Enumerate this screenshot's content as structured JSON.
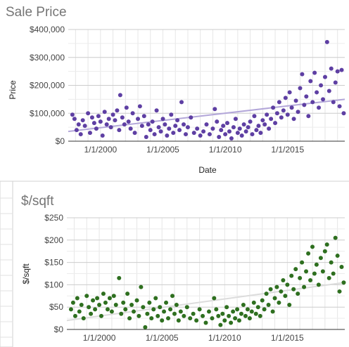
{
  "chart_data": [
    {
      "type": "scatter",
      "title": "Sale Price",
      "xlabel": "Date",
      "ylabel": "Price",
      "x_range": [
        "1997-06-01",
        "2019-08-01"
      ],
      "x_ticks": [
        "1/1/2000",
        "1/1/2005",
        "1/1/2010",
        "1/1/2015"
      ],
      "y_ticks": [
        "$0",
        "$100,000",
        "$200,000",
        "$300,000",
        "$400,000"
      ],
      "ylim": [
        0,
        400000
      ],
      "grid": true,
      "point_color": "#5e3fa3",
      "trend_color": "#b3a7d9",
      "trendline": {
        "x": [
          "1997-06-01",
          "2019-08-01"
        ],
        "y": [
          35000,
          150000
        ]
      },
      "points": [
        {
          "x": "1997-10-01",
          "y": 95000
        },
        {
          "x": "1997-12-01",
          "y": 80000
        },
        {
          "x": "1998-02-01",
          "y": 40000
        },
        {
          "x": "1998-04-01",
          "y": 60000
        },
        {
          "x": "1998-06-01",
          "y": 25000
        },
        {
          "x": "1998-08-01",
          "y": 75000
        },
        {
          "x": "1998-10-01",
          "y": 55000
        },
        {
          "x": "1999-01-01",
          "y": 100000
        },
        {
          "x": "1999-03-01",
          "y": 30000
        },
        {
          "x": "1999-05-01",
          "y": 85000
        },
        {
          "x": "1999-07-01",
          "y": 65000
        },
        {
          "x": "1999-09-01",
          "y": 45000
        },
        {
          "x": "1999-11-01",
          "y": 90000
        },
        {
          "x": "2000-01-01",
          "y": 70000
        },
        {
          "x": "2000-03-01",
          "y": 20000
        },
        {
          "x": "2000-05-01",
          "y": 105000
        },
        {
          "x": "2000-07-01",
          "y": 60000
        },
        {
          "x": "2000-09-01",
          "y": 80000
        },
        {
          "x": "2000-11-01",
          "y": 50000
        },
        {
          "x": "2001-01-01",
          "y": 95000
        },
        {
          "x": "2001-03-01",
          "y": 75000
        },
        {
          "x": "2001-05-01",
          "y": 110000
        },
        {
          "x": "2001-07-01",
          "y": 40000
        },
        {
          "x": "2001-08-01",
          "y": 165000
        },
        {
          "x": "2001-10-01",
          "y": 85000
        },
        {
          "x": "2001-12-01",
          "y": 60000
        },
        {
          "x": "2002-02-01",
          "y": 120000
        },
        {
          "x": "2002-04-01",
          "y": 70000
        },
        {
          "x": "2002-06-01",
          "y": 45000
        },
        {
          "x": "2002-08-01",
          "y": 100000
        },
        {
          "x": "2002-10-01",
          "y": 30000
        },
        {
          "x": "2003-01-01",
          "y": 80000
        },
        {
          "x": "2003-03-01",
          "y": 125000
        },
        {
          "x": "2003-05-01",
          "y": 55000
        },
        {
          "x": "2003-07-01",
          "y": 90000
        },
        {
          "x": "2003-09-01",
          "y": 15000
        },
        {
          "x": "2003-11-01",
          "y": 60000
        },
        {
          "x": "2004-01-01",
          "y": 40000
        },
        {
          "x": "2004-03-01",
          "y": 70000
        },
        {
          "x": "2004-05-01",
          "y": 25000
        },
        {
          "x": "2004-07-01",
          "y": 110000
        },
        {
          "x": "2004-09-01",
          "y": 50000
        },
        {
          "x": "2004-11-01",
          "y": 35000
        },
        {
          "x": "2005-01-01",
          "y": 80000
        },
        {
          "x": "2005-03-01",
          "y": 60000
        },
        {
          "x": "2005-05-01",
          "y": 20000
        },
        {
          "x": "2005-07-01",
          "y": 45000
        },
        {
          "x": "2005-09-01",
          "y": 95000
        },
        {
          "x": "2005-11-01",
          "y": 30000
        },
        {
          "x": "2006-01-01",
          "y": 55000
        },
        {
          "x": "2006-03-01",
          "y": 75000
        },
        {
          "x": "2006-05-01",
          "y": 40000
        },
        {
          "x": "2006-07-01",
          "y": 140000
        },
        {
          "x": "2006-09-01",
          "y": 60000
        },
        {
          "x": "2006-11-01",
          "y": 25000
        },
        {
          "x": "2007-01-01",
          "y": 50000
        },
        {
          "x": "2007-04-01",
          "y": 85000
        },
        {
          "x": "2007-07-01",
          "y": 30000
        },
        {
          "x": "2007-10-01",
          "y": 45000
        },
        {
          "x": "2008-01-01",
          "y": 20000
        },
        {
          "x": "2008-04-01",
          "y": 35000
        },
        {
          "x": "2008-07-01",
          "y": 60000
        },
        {
          "x": "2008-10-01",
          "y": 25000
        },
        {
          "x": "2009-01-01",
          "y": 45000
        },
        {
          "x": "2009-03-01",
          "y": 115000
        },
        {
          "x": "2009-05-01",
          "y": 70000
        },
        {
          "x": "2009-07-01",
          "y": 15000
        },
        {
          "x": "2009-09-01",
          "y": 40000
        },
        {
          "x": "2009-11-01",
          "y": 55000
        },
        {
          "x": "2010-01-01",
          "y": 25000
        },
        {
          "x": "2010-03-01",
          "y": 65000
        },
        {
          "x": "2010-05-01",
          "y": 35000
        },
        {
          "x": "2010-07-01",
          "y": 10000
        },
        {
          "x": "2010-09-01",
          "y": 50000
        },
        {
          "x": "2010-11-01",
          "y": 80000
        },
        {
          "x": "2011-01-01",
          "y": 30000
        },
        {
          "x": "2011-03-01",
          "y": 45000
        },
        {
          "x": "2011-05-01",
          "y": 20000
        },
        {
          "x": "2011-07-01",
          "y": 60000
        },
        {
          "x": "2011-09-01",
          "y": 35000
        },
        {
          "x": "2011-11-01",
          "y": 50000
        },
        {
          "x": "2012-01-01",
          "y": 70000
        },
        {
          "x": "2012-03-01",
          "y": 25000
        },
        {
          "x": "2012-05-01",
          "y": 90000
        },
        {
          "x": "2012-07-01",
          "y": 40000
        },
        {
          "x": "2012-09-01",
          "y": 55000
        },
        {
          "x": "2012-11-01",
          "y": 30000
        },
        {
          "x": "2013-01-01",
          "y": 75000
        },
        {
          "x": "2013-03-01",
          "y": 60000
        },
        {
          "x": "2013-05-01",
          "y": 95000
        },
        {
          "x": "2013-07-01",
          "y": 45000
        },
        {
          "x": "2013-09-01",
          "y": 80000
        },
        {
          "x": "2013-11-01",
          "y": 120000
        },
        {
          "x": "2014-01-01",
          "y": 65000
        },
        {
          "x": "2014-03-01",
          "y": 100000
        },
        {
          "x": "2014-05-01",
          "y": 140000
        },
        {
          "x": "2014-07-01",
          "y": 85000
        },
        {
          "x": "2014-09-01",
          "y": 110000
        },
        {
          "x": "2014-11-01",
          "y": 155000
        },
        {
          "x": "2015-01-01",
          "y": 95000
        },
        {
          "x": "2015-03-01",
          "y": 175000
        },
        {
          "x": "2015-05-01",
          "y": 120000
        },
        {
          "x": "2015-07-01",
          "y": 80000
        },
        {
          "x": "2015-09-01",
          "y": 145000
        },
        {
          "x": "2015-11-01",
          "y": 105000
        },
        {
          "x": "2016-01-01",
          "y": 190000
        },
        {
          "x": "2016-03-01",
          "y": 240000
        },
        {
          "x": "2016-05-01",
          "y": 130000
        },
        {
          "x": "2016-07-01",
          "y": 160000
        },
        {
          "x": "2016-09-01",
          "y": 90000
        },
        {
          "x": "2016-11-01",
          "y": 215000
        },
        {
          "x": "2017-01-01",
          "y": 140000
        },
        {
          "x": "2017-03-01",
          "y": 245000
        },
        {
          "x": "2017-05-01",
          "y": 175000
        },
        {
          "x": "2017-07-01",
          "y": 120000
        },
        {
          "x": "2017-09-01",
          "y": 200000
        },
        {
          "x": "2017-11-01",
          "y": 150000
        },
        {
          "x": "2018-01-01",
          "y": 230000
        },
        {
          "x": "2018-03-01",
          "y": 355000
        },
        {
          "x": "2018-05-01",
          "y": 180000
        },
        {
          "x": "2018-07-01",
          "y": 260000
        },
        {
          "x": "2018-09-01",
          "y": 140000
        },
        {
          "x": "2018-11-01",
          "y": 210000
        },
        {
          "x": "2019-01-01",
          "y": 250000
        },
        {
          "x": "2019-03-01",
          "y": 125000
        },
        {
          "x": "2019-05-01",
          "y": 255000
        },
        {
          "x": "2019-07-01",
          "y": 100000
        }
      ]
    },
    {
      "type": "scatter",
      "title": "$/sqft",
      "xlabel": "",
      "ylabel": "$/sqft",
      "x_range": [
        "1997-06-01",
        "2019-08-01"
      ],
      "x_ticks": [
        "1/1/2000",
        "1/1/2005",
        "1/1/2010",
        "1/1/2015"
      ],
      "y_ticks": [
        "$0",
        "$50",
        "$100",
        "$150",
        "$200",
        "$250"
      ],
      "ylim": [
        0,
        250
      ],
      "grid": true,
      "point_color": "#2e6f1f",
      "trend_color": "#dcdcdc",
      "trendline": {
        "x": [
          "1997-06-01",
          "2019-08-01"
        ],
        "y": [
          20,
          105
        ]
      },
      "points": [
        {
          "x": "1997-10-01",
          "y": 45
        },
        {
          "x": "1997-12-01",
          "y": 60
        },
        {
          "x": "1998-02-01",
          "y": 30
        },
        {
          "x": "1998-04-01",
          "y": 70
        },
        {
          "x": "1998-06-01",
          "y": 40
        },
        {
          "x": "1998-08-01",
          "y": 55
        },
        {
          "x": "1998-10-01",
          "y": 25
        },
        {
          "x": "1999-01-01",
          "y": 75
        },
        {
          "x": "1999-03-01",
          "y": 50
        },
        {
          "x": "1999-05-01",
          "y": 35
        },
        {
          "x": "1999-07-01",
          "y": 65
        },
        {
          "x": "1999-09-01",
          "y": 45
        },
        {
          "x": "1999-11-01",
          "y": 70
        },
        {
          "x": "2000-01-01",
          "y": 55
        },
        {
          "x": "2000-03-01",
          "y": 30
        },
        {
          "x": "2000-05-01",
          "y": 80
        },
        {
          "x": "2000-07-01",
          "y": 60
        },
        {
          "x": "2000-09-01",
          "y": 45
        },
        {
          "x": "2000-11-01",
          "y": 70
        },
        {
          "x": "2001-01-01",
          "y": 40
        },
        {
          "x": "2001-03-01",
          "y": 75
        },
        {
          "x": "2001-05-01",
          "y": 55
        },
        {
          "x": "2001-08-01",
          "y": 115
        },
        {
          "x": "2001-10-01",
          "y": 35
        },
        {
          "x": "2001-12-01",
          "y": 60
        },
        {
          "x": "2002-02-01",
          "y": 45
        },
        {
          "x": "2002-04-01",
          "y": 80
        },
        {
          "x": "2002-06-01",
          "y": 25
        },
        {
          "x": "2002-08-01",
          "y": 55
        },
        {
          "x": "2002-10-01",
          "y": 40
        },
        {
          "x": "2003-01-01",
          "y": 65
        },
        {
          "x": "2003-03-01",
          "y": 30
        },
        {
          "x": "2003-05-01",
          "y": 95
        },
        {
          "x": "2003-07-01",
          "y": 50
        },
        {
          "x": "2003-09-01",
          "y": 5
        },
        {
          "x": "2003-11-01",
          "y": 35
        },
        {
          "x": "2004-01-01",
          "y": 60
        },
        {
          "x": "2004-03-01",
          "y": 25
        },
        {
          "x": "2004-05-01",
          "y": 45
        },
        {
          "x": "2004-07-01",
          "y": 70
        },
        {
          "x": "2004-09-01",
          "y": 30
        },
        {
          "x": "2004-11-01",
          "y": 50
        },
        {
          "x": "2005-01-01",
          "y": 20
        },
        {
          "x": "2005-03-01",
          "y": 40
        },
        {
          "x": "2005-05-01",
          "y": 60
        },
        {
          "x": "2005-07-01",
          "y": 25
        },
        {
          "x": "2005-09-01",
          "y": 45
        },
        {
          "x": "2005-11-01",
          "y": 75
        },
        {
          "x": "2006-01-01",
          "y": 35
        },
        {
          "x": "2006-03-01",
          "y": 55
        },
        {
          "x": "2006-05-01",
          "y": 20
        },
        {
          "x": "2006-07-01",
          "y": 40
        },
        {
          "x": "2006-10-01",
          "y": 30
        },
        {
          "x": "2007-01-01",
          "y": 50
        },
        {
          "x": "2007-04-01",
          "y": 25
        },
        {
          "x": "2007-07-01",
          "y": 35
        },
        {
          "x": "2007-10-01",
          "y": 20
        },
        {
          "x": "2008-01-01",
          "y": 45
        },
        {
          "x": "2008-04-01",
          "y": 30
        },
        {
          "x": "2008-07-01",
          "y": 15
        },
        {
          "x": "2008-10-01",
          "y": 40
        },
        {
          "x": "2009-01-01",
          "y": 25
        },
        {
          "x": "2009-03-01",
          "y": 70
        },
        {
          "x": "2009-05-01",
          "y": 45
        },
        {
          "x": "2009-07-01",
          "y": 30
        },
        {
          "x": "2009-09-01",
          "y": 10
        },
        {
          "x": "2009-11-01",
          "y": 35
        },
        {
          "x": "2010-01-01",
          "y": 20
        },
        {
          "x": "2010-03-01",
          "y": 50
        },
        {
          "x": "2010-05-01",
          "y": 30
        },
        {
          "x": "2010-07-01",
          "y": 15
        },
        {
          "x": "2010-09-01",
          "y": 40
        },
        {
          "x": "2010-11-01",
          "y": 25
        },
        {
          "x": "2011-01-01",
          "y": 45
        },
        {
          "x": "2011-03-01",
          "y": 20
        },
        {
          "x": "2011-05-01",
          "y": 35
        },
        {
          "x": "2011-07-01",
          "y": 55
        },
        {
          "x": "2011-09-01",
          "y": 30
        },
        {
          "x": "2011-11-01",
          "y": 45
        },
        {
          "x": "2012-01-01",
          "y": 25
        },
        {
          "x": "2012-03-01",
          "y": 40
        },
        {
          "x": "2012-05-01",
          "y": 60
        },
        {
          "x": "2012-07-01",
          "y": 35
        },
        {
          "x": "2012-09-01",
          "y": 50
        },
        {
          "x": "2012-11-01",
          "y": 30
        },
        {
          "x": "2013-01-01",
          "y": 65
        },
        {
          "x": "2013-03-01",
          "y": 45
        },
        {
          "x": "2013-05-01",
          "y": 80
        },
        {
          "x": "2013-07-01",
          "y": 55
        },
        {
          "x": "2013-09-01",
          "y": 90
        },
        {
          "x": "2013-11-01",
          "y": 40
        },
        {
          "x": "2014-01-01",
          "y": 70
        },
        {
          "x": "2014-03-01",
          "y": 95
        },
        {
          "x": "2014-05-01",
          "y": 60
        },
        {
          "x": "2014-07-01",
          "y": 85
        },
        {
          "x": "2014-09-01",
          "y": 110
        },
        {
          "x": "2014-11-01",
          "y": 75
        },
        {
          "x": "2015-01-01",
          "y": 100
        },
        {
          "x": "2015-03-01",
          "y": 55
        },
        {
          "x": "2015-05-01",
          "y": 120
        },
        {
          "x": "2015-07-01",
          "y": 90
        },
        {
          "x": "2015-09-01",
          "y": 135
        },
        {
          "x": "2015-11-01",
          "y": 80
        },
        {
          "x": "2016-01-01",
          "y": 115
        },
        {
          "x": "2016-03-01",
          "y": 150
        },
        {
          "x": "2016-05-01",
          "y": 95
        },
        {
          "x": "2016-07-01",
          "y": 130
        },
        {
          "x": "2016-09-01",
          "y": 170
        },
        {
          "x": "2016-11-01",
          "y": 110
        },
        {
          "x": "2017-01-01",
          "y": 185
        },
        {
          "x": "2017-03-01",
          "y": 125
        },
        {
          "x": "2017-05-01",
          "y": 145
        },
        {
          "x": "2017-07-01",
          "y": 100
        },
        {
          "x": "2017-09-01",
          "y": 160
        },
        {
          "x": "2017-11-01",
          "y": 130
        },
        {
          "x": "2018-01-01",
          "y": 175
        },
        {
          "x": "2018-03-01",
          "y": 190
        },
        {
          "x": "2018-05-01",
          "y": 115
        },
        {
          "x": "2018-07-01",
          "y": 150
        },
        {
          "x": "2018-09-01",
          "y": 125
        },
        {
          "x": "2018-11-01",
          "y": 205
        },
        {
          "x": "2019-01-01",
          "y": 165
        },
        {
          "x": "2019-03-01",
          "y": 85
        },
        {
          "x": "2019-05-01",
          "y": 140
        },
        {
          "x": "2019-07-01",
          "y": 105
        }
      ]
    }
  ]
}
